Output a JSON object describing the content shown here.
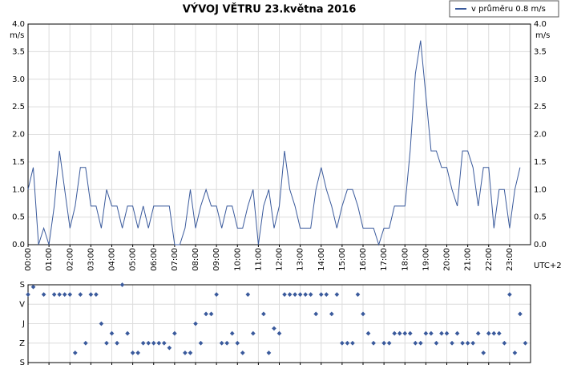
{
  "chart_data": [
    {
      "type": "line",
      "title": "VÝVOJ VĚTRU  23.května 2016",
      "y_label": "m/s",
      "x_label": "UTC+2",
      "legend": "top-right",
      "grid": true,
      "x": [
        0,
        0.25,
        0.5,
        0.75,
        1,
        1.25,
        1.5,
        1.75,
        2,
        2.25,
        2.5,
        2.75,
        3,
        3.25,
        3.5,
        3.75,
        4,
        4.25,
        4.5,
        4.75,
        5,
        5.25,
        5.5,
        5.75,
        6,
        6.25,
        6.5,
        6.75,
        7,
        7.25,
        7.5,
        7.75,
        8,
        8.25,
        8.5,
        8.75,
        9,
        9.25,
        9.5,
        9.75,
        10,
        10.25,
        10.5,
        10.75,
        11,
        11.25,
        11.5,
        11.75,
        12,
        12.25,
        12.5,
        12.75,
        13,
        13.25,
        13.5,
        13.75,
        14,
        14.25,
        14.5,
        14.75,
        15,
        15.25,
        15.5,
        15.75,
        16,
        16.25,
        16.5,
        16.75,
        17,
        17.25,
        17.5,
        17.75,
        18,
        18.25,
        18.5,
        18.75,
        19,
        19.25,
        19.5,
        19.75,
        20,
        20.25,
        20.5,
        20.75,
        21,
        21.25,
        21.5,
        21.75,
        22,
        22.25,
        22.5,
        22.75,
        23,
        23.25,
        23.5,
        23.75
      ],
      "series": [
        {
          "name": "v průměru 0.8 m/s",
          "color": "#3a5a9c",
          "values": [
            1.0,
            1.4,
            0.0,
            0.3,
            0.0,
            0.7,
            1.7,
            1.0,
            0.3,
            0.7,
            1.4,
            1.4,
            0.7,
            0.7,
            0.3,
            1.0,
            0.7,
            0.7,
            0.3,
            0.7,
            0.7,
            0.3,
            0.7,
            0.3,
            0.7,
            0.7,
            0.7,
            0.7,
            0.0,
            0.0,
            0.3,
            1.0,
            0.3,
            0.7,
            1.0,
            0.7,
            0.7,
            0.3,
            0.7,
            0.7,
            0.3,
            0.3,
            0.7,
            1.0,
            0.0,
            0.7,
            1.0,
            0.3,
            0.7,
            1.7,
            1.0,
            0.7,
            0.3,
            0.3,
            0.3,
            1.0,
            1.4,
            1.0,
            0.7,
            0.3,
            0.7,
            1.0,
            1.0,
            0.7,
            0.3,
            0.3,
            0.3,
            0.0,
            0.3,
            0.3,
            0.7,
            0.7,
            0.7,
            1.7,
            3.1,
            3.7,
            2.7,
            1.7,
            1.7,
            1.4,
            1.4,
            1.0,
            0.7,
            1.7,
            1.7,
            1.4,
            0.7,
            1.4,
            1.4,
            0.3,
            1.0,
            1.0,
            0.3,
            1.0,
            1.4,
            null
          ]
        }
      ],
      "xlim": [
        0,
        24
      ],
      "xticks": [
        {
          "value": 0,
          "label": "00:00"
        },
        {
          "value": 1,
          "label": "01:00"
        },
        {
          "value": 2,
          "label": "02:00"
        },
        {
          "value": 3,
          "label": "03:00"
        },
        {
          "value": 4,
          "label": "04:00"
        },
        {
          "value": 5,
          "label": "05:00"
        },
        {
          "value": 6,
          "label": "06:00"
        },
        {
          "value": 7,
          "label": "07:00"
        },
        {
          "value": 8,
          "label": "08:00"
        },
        {
          "value": 9,
          "label": "09:00"
        },
        {
          "value": 10,
          "label": "10:00"
        },
        {
          "value": 11,
          "label": "11:00"
        },
        {
          "value": 12,
          "label": "12:00"
        },
        {
          "value": 13,
          "label": "13:00"
        },
        {
          "value": 14,
          "label": "14:00"
        },
        {
          "value": 15,
          "label": "15:00"
        },
        {
          "value": 16,
          "label": "16:00"
        },
        {
          "value": 17,
          "label": "17:00"
        },
        {
          "value": 18,
          "label": "18:00"
        },
        {
          "value": 19,
          "label": "19:00"
        },
        {
          "value": 20,
          "label": "20:00"
        },
        {
          "value": 21,
          "label": "21:00"
        },
        {
          "value": 22,
          "label": "22:00"
        },
        {
          "value": 23,
          "label": "23:00"
        }
      ],
      "ylim": [
        0,
        4
      ],
      "yticks": [
        {
          "value": 0,
          "label": "0.0"
        },
        0.5,
        {
          "value": 1,
          "label": "1.0"
        },
        1.5,
        {
          "value": 2,
          "label": "2.0"
        },
        2.5,
        {
          "value": 3,
          "label": "3.0"
        },
        3.5,
        {
          "value": 4,
          "label": "4.0"
        }
      ]
    },
    {
      "type": "scatter",
      "color": "#3a5a9c",
      "grid": true,
      "x": [
        0,
        0.25,
        0.5,
        0.75,
        1,
        1.25,
        1.5,
        1.75,
        2,
        2.25,
        2.5,
        2.75,
        3,
        3.25,
        3.5,
        3.75,
        4,
        4.25,
        4.5,
        4.75,
        5,
        5.25,
        5.5,
        5.75,
        6,
        6.25,
        6.5,
        6.75,
        7,
        7.25,
        7.5,
        7.75,
        8,
        8.25,
        8.5,
        8.75,
        9,
        9.25,
        9.5,
        9.75,
        10,
        10.25,
        10.5,
        10.75,
        11,
        11.25,
        11.5,
        11.75,
        12,
        12.25,
        12.5,
        12.75,
        13,
        13.25,
        13.5,
        13.75,
        14,
        14.25,
        14.5,
        14.75,
        15,
        15.25,
        15.5,
        15.75,
        16,
        16.25,
        16.5,
        16.75,
        17,
        17.25,
        17.5,
        17.75,
        18,
        18.25,
        18.5,
        18.75,
        19,
        19.25,
        19.5,
        19.75,
        20,
        20.25,
        20.5,
        20.75,
        21,
        21.25,
        21.5,
        21.75,
        22,
        22.25,
        22.5,
        22.75,
        23,
        23.25,
        23.5,
        23.75
      ],
      "values": [
        45,
        10,
        null,
        45,
        null,
        45,
        45,
        45,
        45,
        315,
        45,
        270,
        45,
        45,
        180,
        270,
        225,
        270,
        0,
        225,
        315,
        315,
        270,
        270,
        270,
        270,
        270,
        292,
        225,
        null,
        315,
        315,
        180,
        270,
        135,
        135,
        45,
        270,
        270,
        225,
        270,
        315,
        45,
        225,
        null,
        135,
        315,
        202,
        225,
        45,
        45,
        45,
        45,
        45,
        45,
        135,
        45,
        45,
        135,
        45,
        270,
        270,
        270,
        45,
        135,
        225,
        270,
        null,
        270,
        270,
        225,
        225,
        225,
        225,
        270,
        270,
        225,
        225,
        270,
        225,
        225,
        270,
        225,
        270,
        270,
        270,
        225,
        315,
        225,
        225,
        225,
        270,
        45,
        315,
        135,
        270
      ],
      "xlim": [
        0,
        24
      ],
      "ylim": [
        360,
        0
      ],
      "yticks": [
        {
          "value": 0,
          "label": "S"
        },
        {
          "value": 90,
          "label": "V"
        },
        {
          "value": 180,
          "label": "J"
        },
        {
          "value": 270,
          "label": "Z"
        },
        {
          "value": 360,
          "label": "S"
        }
      ]
    }
  ]
}
